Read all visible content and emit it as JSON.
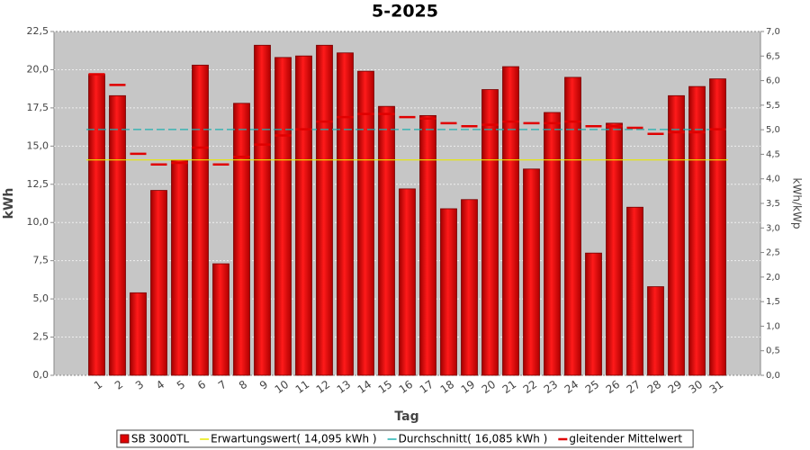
{
  "chart_data": {
    "type": "bar",
    "title": "5-2025",
    "x_label": "Tag",
    "y_label": "kWh",
    "y2_label": "kWh/kWp",
    "categories": [
      "1",
      "2",
      "3",
      "4",
      "5",
      "6",
      "7",
      "8",
      "9",
      "10",
      "11",
      "12",
      "13",
      "14",
      "15",
      "16",
      "17",
      "18",
      "19",
      "20",
      "21",
      "22",
      "23",
      "24",
      "25",
      "26",
      "27",
      "28",
      "29",
      "30",
      "31"
    ],
    "series": [
      {
        "name": "SB 3000TL",
        "type": "bar",
        "color": "#e00000",
        "values": [
          19.7,
          18.3,
          5.4,
          12.1,
          14.1,
          20.3,
          7.3,
          17.8,
          21.6,
          20.8,
          20.9,
          21.6,
          21.1,
          19.9,
          17.6,
          12.2,
          17.0,
          10.9,
          11.5,
          18.7,
          20.2,
          13.5,
          17.2,
          19.5,
          8.0,
          16.5,
          11.0,
          5.8,
          18.3,
          18.9,
          19.4
        ]
      },
      {
        "name": "Erwartungswert( 14,095 kWh )",
        "type": "hline",
        "color": "#e8e800",
        "value": 14.095
      },
      {
        "name": "Durchschnitt( 16,085 kWh )",
        "type": "hline",
        "color": "#20b0b0",
        "value": 16.085
      },
      {
        "name": "gleitender Mittelwert",
        "type": "step",
        "color": "#e00000",
        "values": [
          19.7,
          19.0,
          14.5,
          13.8,
          13.9,
          14.9,
          13.8,
          14.3,
          15.1,
          15.7,
          16.1,
          16.6,
          16.9,
          17.1,
          17.1,
          16.9,
          16.8,
          16.5,
          16.3,
          16.4,
          16.6,
          16.5,
          16.5,
          16.6,
          16.3,
          16.3,
          16.2,
          15.8,
          15.9,
          15.9,
          16.1
        ]
      }
    ],
    "ylim": [
      0,
      22.5
    ],
    "yticks": [
      {
        "value": 0,
        "label": "0,0"
      },
      {
        "value": 2.5,
        "label": "2,5"
      },
      {
        "value": 5,
        "label": "5,0"
      },
      {
        "value": 7.5,
        "label": "7,5"
      },
      {
        "value": 10,
        "label": "10,0"
      },
      {
        "value": 12.5,
        "label": "12,5"
      },
      {
        "value": 15,
        "label": "15,0"
      },
      {
        "value": 17.5,
        "label": "17,5"
      },
      {
        "value": 20,
        "label": "20,0"
      },
      {
        "value": 22.5,
        "label": "22,5"
      }
    ],
    "y2lim": [
      0,
      7
    ],
    "y2ticks": [
      {
        "value": 0,
        "label": "0,0"
      },
      {
        "value": 0.5,
        "label": "0,5"
      },
      {
        "value": 1,
        "label": "1,0"
      },
      {
        "value": 1.5,
        "label": "1,5"
      },
      {
        "value": 2,
        "label": "2,0"
      },
      {
        "value": 2.5,
        "label": "2,5"
      },
      {
        "value": 3,
        "label": "3,0"
      },
      {
        "value": 3.5,
        "label": "3,5"
      },
      {
        "value": 4,
        "label": "4,0"
      },
      {
        "value": 4.5,
        "label": "4,5"
      },
      {
        "value": 5,
        "label": "5,0"
      },
      {
        "value": 5.5,
        "label": "5,5"
      },
      {
        "value": 6,
        "label": "6,0"
      },
      {
        "value": 6.5,
        "label": "6,5"
      },
      {
        "value": 7,
        "label": "7,0"
      }
    ],
    "grid": true
  }
}
